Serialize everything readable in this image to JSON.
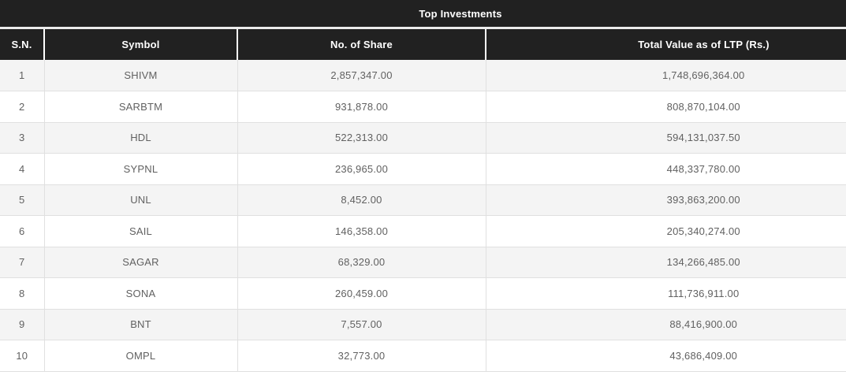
{
  "table": {
    "title": "Top Investments",
    "columns": {
      "sn": "S.N.",
      "symbol": "Symbol",
      "shares": "No. of Share",
      "value": "Total Value as of LTP (Rs.)"
    },
    "rows": [
      {
        "sn": "1",
        "symbol": "SHIVM",
        "shares": "2,857,347.00",
        "value": "1,748,696,364.00"
      },
      {
        "sn": "2",
        "symbol": "SARBTM",
        "shares": "931,878.00",
        "value": "808,870,104.00"
      },
      {
        "sn": "3",
        "symbol": "HDL",
        "shares": "522,313.00",
        "value": "594,131,037.50"
      },
      {
        "sn": "4",
        "symbol": "SYPNL",
        "shares": "236,965.00",
        "value": "448,337,780.00"
      },
      {
        "sn": "5",
        "symbol": "UNL",
        "shares": "8,452.00",
        "value": "393,863,200.00"
      },
      {
        "sn": "6",
        "symbol": "SAIL",
        "shares": "146,358.00",
        "value": "205,340,274.00"
      },
      {
        "sn": "7",
        "symbol": "SAGAR",
        "shares": "68,329.00",
        "value": "134,266,485.00"
      },
      {
        "sn": "8",
        "symbol": "SONA",
        "shares": "260,459.00",
        "value": "111,736,911.00"
      },
      {
        "sn": "9",
        "symbol": "BNT",
        "shares": "7,557.00",
        "value": "88,416,900.00"
      },
      {
        "sn": "10",
        "symbol": "OMPL",
        "shares": "32,773.00",
        "value": "43,686,409.00"
      }
    ]
  },
  "colors": {
    "header_background": "#212121",
    "header_text": "#ffffff",
    "stripe_row_background": "#f4f4f4",
    "body_text": "#616161",
    "border": "#e0e0e0"
  }
}
